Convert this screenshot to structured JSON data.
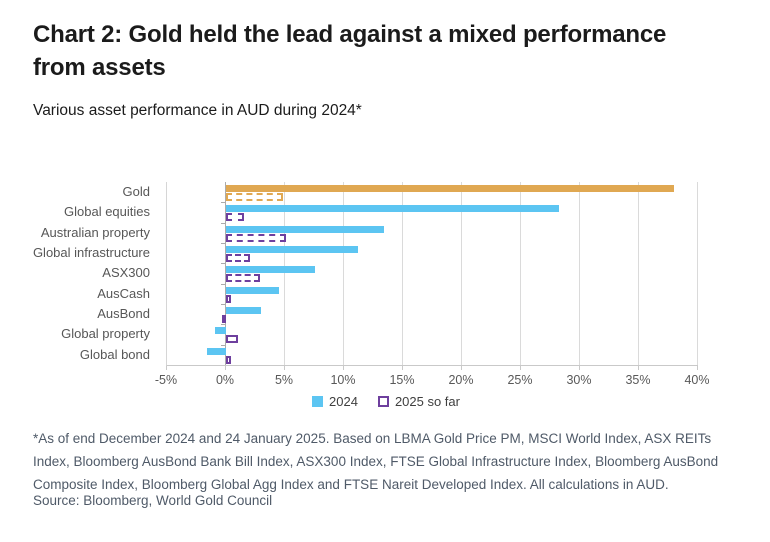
{
  "header": {
    "title_line1": "Chart 2: Gold held the lead against a mixed performance",
    "title_line2": "from assets",
    "subtitle": "Various asset performance in AUD during 2024*"
  },
  "chart_data": {
    "type": "bar",
    "orientation": "horizontal",
    "title": "Chart 2: Gold held the lead against a mixed performance from assets",
    "subtitle": "Various asset performance in AUD during 2024*",
    "categories": [
      "Gold",
      "Global equities",
      "Australian property",
      "Global infrastructure",
      "ASX300",
      "AusCash",
      "AusBond",
      "Global property",
      "Global bond"
    ],
    "series": [
      {
        "name": "2024",
        "style": "solid",
        "values": [
          38.0,
          28.2,
          13.4,
          11.2,
          7.5,
          4.5,
          3.0,
          -0.9,
          -1.6
        ]
      },
      {
        "name": "2025 so far",
        "style": "dashed",
        "values": [
          4.8,
          1.5,
          5.1,
          2.0,
          2.9,
          0.4,
          -0.3,
          1.0,
          0.4
        ]
      }
    ],
    "xlim": [
      -5,
      40
    ],
    "x_tick_step": 5,
    "x_tick_labels": [
      "-5%",
      "0%",
      "5%",
      "10%",
      "15%",
      "20%",
      "25%",
      "30%",
      "35%",
      "40%"
    ],
    "grid": "vertical",
    "legend_position": "bottom-center",
    "highlight_category": "Gold",
    "colors": {
      "gold": "#e0a852",
      "blue": "#5cc5f2",
      "purple": "#6e3f9e",
      "gridline": "#dadada",
      "zero_axis": "#ababab"
    }
  },
  "footer": {
    "footnote": "*As of end December 2024 and 24 January 2025. Based on LBMA Gold Price PM, MSCI World Index, ASX REITs Index, Bloomberg AusBond Bank Bill Index, ASX300 Index, FTSE Global Infrastructure Index, Bloomberg AusBond Composite Index, Bloomberg Global Agg Index and FTSE Nareit Developed Index. All calculations in AUD.",
    "source": "Source: Bloomberg, World Gold Council"
  }
}
